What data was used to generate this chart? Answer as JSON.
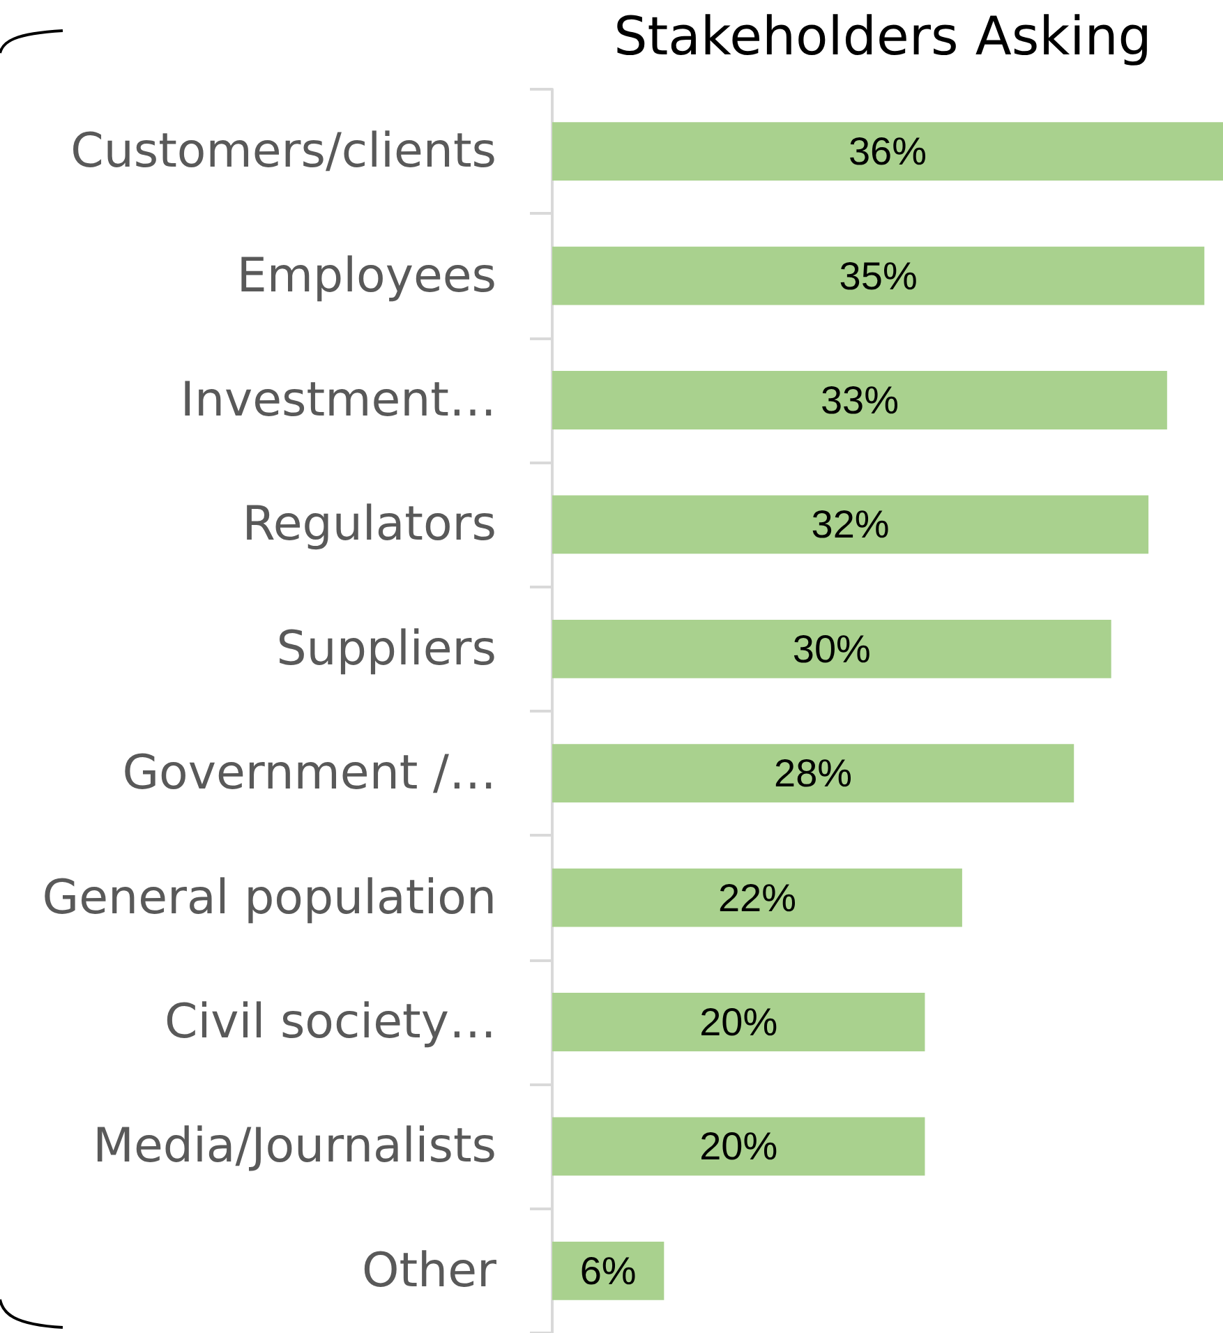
{
  "chart_data": {
    "type": "bar",
    "orientation": "horizontal",
    "title": "Stakeholders Asking",
    "categories": [
      "Customers/clients",
      "Employees",
      "Investment…",
      "Regulators",
      "Suppliers",
      "Government /…",
      "General population",
      "Civil society…",
      "Media/Journalists",
      "Other"
    ],
    "values": [
      36,
      35,
      33,
      32,
      30,
      28,
      22,
      20,
      20,
      6
    ],
    "value_labels": [
      "36%",
      "35%",
      "33%",
      "32%",
      "30%",
      "28%",
      "22%",
      "20%",
      "20%",
      "6%"
    ],
    "color": "#a9d18e",
    "tick_labels": "y"
  }
}
